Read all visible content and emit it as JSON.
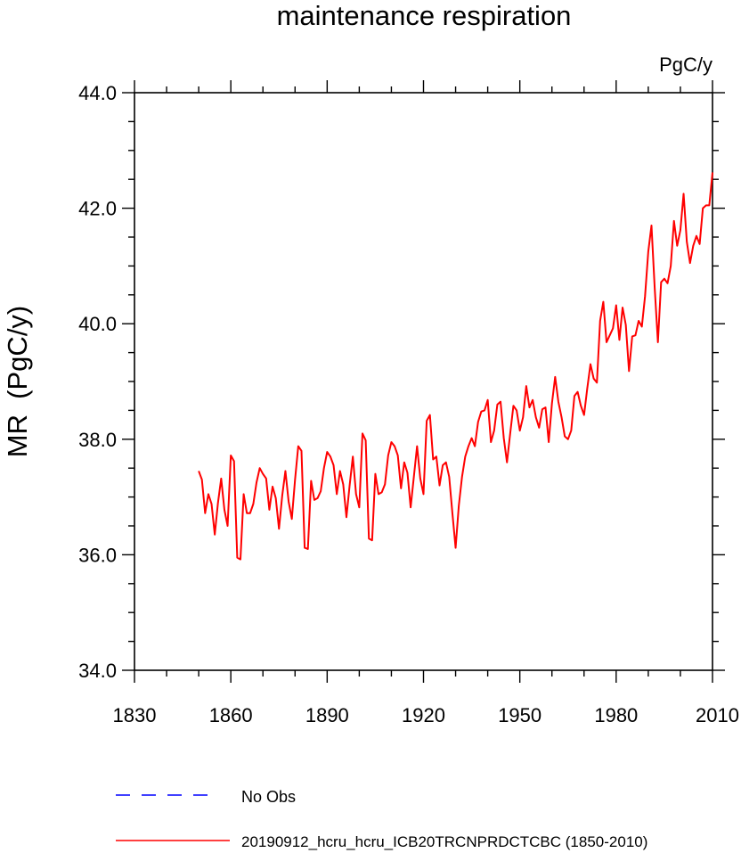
{
  "chart_data": {
    "type": "line",
    "title": "maintenance respiration",
    "units_label": "PgC/y",
    "xlabel": "",
    "ylabel": "MR  (PgC/y)",
    "xlim": [
      1830,
      2010
    ],
    "ylim": [
      34.0,
      44.0
    ],
    "x_ticks": [
      1830,
      1860,
      1890,
      1920,
      1950,
      1980,
      2010
    ],
    "x_tick_labels": [
      "1830",
      "1860",
      "1890",
      "1920",
      "1950",
      "1980",
      "2010"
    ],
    "y_ticks": [
      34.0,
      36.0,
      38.0,
      40.0,
      42.0,
      44.0
    ],
    "y_tick_labels": [
      "34.0",
      "36.0",
      "38.0",
      "40.0",
      "42.0",
      "44.0"
    ],
    "legend": [
      {
        "label": "No Obs",
        "color": "#0000ff",
        "style": "dashed"
      },
      {
        "label": "20190912_hcru_hcru_ICB20TRCNPRDCTCBC (1850-2010)",
        "color": "#ff0000",
        "style": "solid"
      }
    ],
    "series": [
      {
        "name": "20190912_hcru_hcru_ICB20TRCNPRDCTCBC (1850-2010)",
        "color": "#ff0000",
        "x_start": 1850,
        "x_step": 1,
        "values": [
          37.45,
          37.3,
          36.72,
          37.05,
          36.88,
          36.35,
          36.9,
          37.32,
          36.78,
          36.5,
          37.72,
          37.62,
          35.95,
          35.92,
          37.05,
          36.72,
          36.72,
          36.88,
          37.25,
          37.5,
          37.4,
          37.32,
          36.78,
          37.18,
          36.98,
          36.45,
          37.02,
          37.45,
          36.92,
          36.62,
          37.3,
          37.88,
          37.8,
          36.12,
          36.1,
          37.28,
          36.95,
          36.98,
          37.1,
          37.5,
          37.78,
          37.7,
          37.55,
          37.05,
          37.45,
          37.22,
          36.65,
          37.2,
          37.7,
          37.05,
          36.82,
          38.1,
          37.98,
          36.28,
          36.25,
          37.4,
          37.05,
          37.08,
          37.22,
          37.72,
          37.95,
          37.88,
          37.72,
          37.15,
          37.6,
          37.42,
          36.82,
          37.35,
          37.88,
          37.32,
          37.05,
          38.32,
          38.42,
          37.65,
          37.7,
          37.2,
          37.55,
          37.6,
          37.35,
          36.72,
          36.12,
          36.85,
          37.35,
          37.7,
          37.88,
          38.02,
          37.88,
          38.3,
          38.48,
          38.5,
          38.68,
          37.95,
          38.15,
          38.6,
          38.65,
          38.02,
          37.6,
          38.1,
          38.58,
          38.5,
          38.15,
          38.38,
          38.92,
          38.55,
          38.68,
          38.38,
          38.2,
          38.52,
          38.55,
          37.95,
          38.62,
          39.08,
          38.65,
          38.38,
          38.05,
          38.0,
          38.15,
          38.75,
          38.82,
          38.58,
          38.42,
          38.88,
          39.3,
          39.05,
          38.98,
          40.05,
          40.38,
          39.68,
          39.8,
          39.92,
          40.32,
          39.72,
          40.28,
          39.98,
          39.18,
          39.78,
          39.8,
          40.05,
          39.95,
          40.48,
          41.25,
          41.7,
          40.62,
          39.68,
          40.72,
          40.78,
          40.7,
          41.0,
          41.78,
          41.35,
          41.62,
          42.25,
          41.42,
          41.05,
          41.35,
          41.52,
          41.38,
          42.0,
          42.05,
          42.05,
          42.62
        ]
      }
    ]
  }
}
